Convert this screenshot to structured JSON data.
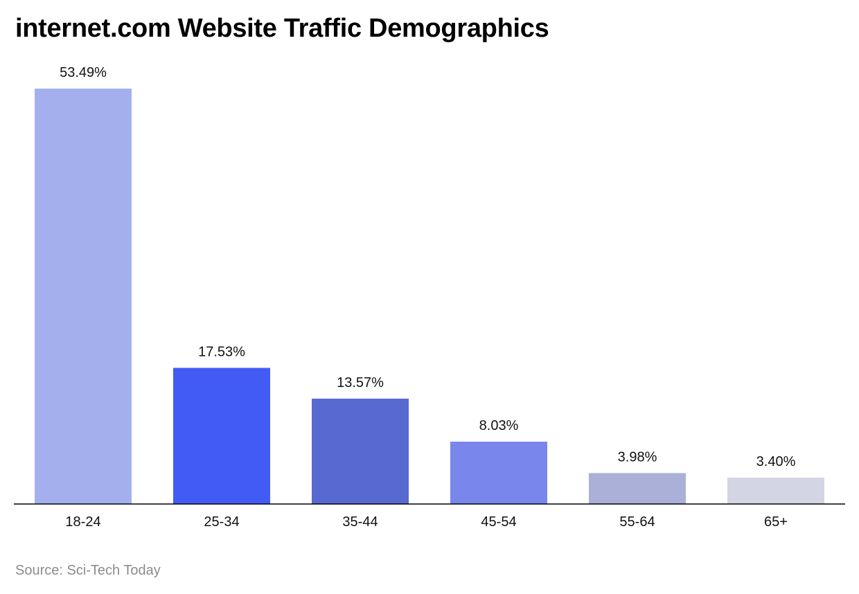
{
  "chart_data": {
    "type": "bar",
    "title": "internet.com Website Traffic Demographics",
    "xlabel": "",
    "ylabel": "",
    "categories": [
      "18-24",
      "25-34",
      "35-44",
      "45-54",
      "55-64",
      "65+"
    ],
    "values": [
      53.49,
      17.53,
      13.57,
      8.03,
      3.98,
      3.4
    ],
    "value_labels": [
      "53.49%",
      "17.53%",
      "13.57%",
      "8.03%",
      "3.98%",
      "3.40%"
    ],
    "colors": [
      "#a4b0ee",
      "#435bf5",
      "#5869d2",
      "#7987ec",
      "#abb0d9",
      "#d3d5e5"
    ],
    "ylim": [
      0,
      53.49
    ],
    "grid": false,
    "legend": "none"
  },
  "source": "Source: Sci-Tech Today"
}
